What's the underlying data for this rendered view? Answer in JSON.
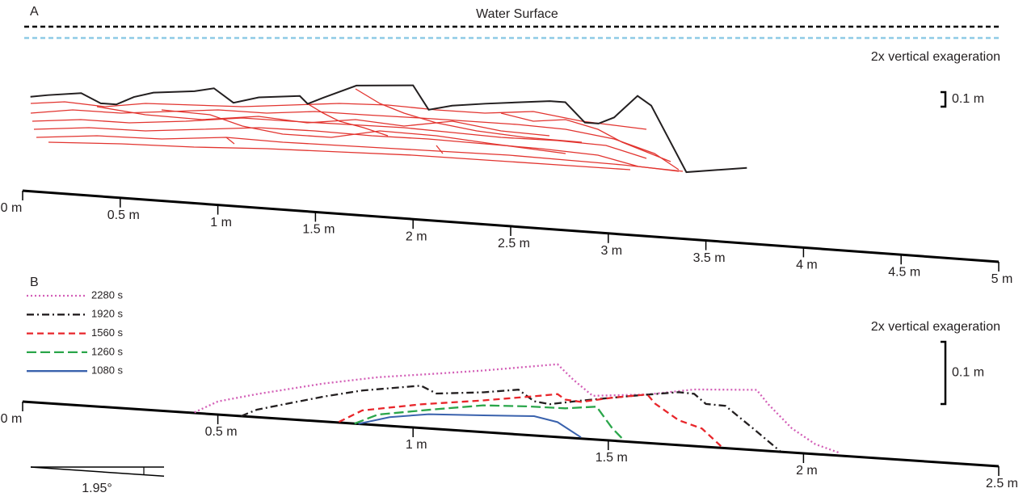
{
  "chart_data": [
    {
      "type": "line",
      "panel_label": "A",
      "annotation": "Water Surface",
      "note": "2x vertical exageration",
      "scale_bar": {
        "value": 0.1,
        "label": "0.1 m"
      },
      "xlim": [
        0,
        5
      ],
      "xticks": [
        {
          "value": 0,
          "label": "0 m"
        },
        {
          "value": 0.5,
          "label": "0.5 m"
        },
        {
          "value": 1,
          "label": "1 m"
        },
        {
          "value": 1.5,
          "label": "1.5 m"
        },
        {
          "value": 2,
          "label": "2 m"
        },
        {
          "value": 2.5,
          "label": "2.5 m"
        },
        {
          "value": 3,
          "label": "3 m"
        },
        {
          "value": 3.5,
          "label": "3.5 m"
        },
        {
          "value": 4,
          "label": "4 m"
        },
        {
          "value": 4.5,
          "label": "4.5 m"
        },
        {
          "value": 5,
          "label": "5 m"
        }
      ],
      "series": [
        {
          "color": "#231f20",
          "style": "solid",
          "x": [
            0.04,
            0.13,
            0.3,
            0.4,
            0.48,
            0.57,
            0.67,
            0.88,
            0.98,
            1.08,
            1.21,
            1.42,
            1.46,
            1.54,
            1.71,
            2.0,
            2.08,
            2.2,
            2.37,
            2.7,
            2.78,
            2.88,
            2.95,
            3.03,
            3.15,
            3.22,
            3.4,
            3.71
          ],
          "values": [
            0.65,
            0.67,
            0.7,
            0.64,
            0.64,
            0.7,
            0.74,
            0.77,
            0.8,
            0.71,
            0.76,
            0.79,
            0.74,
            0.79,
            0.89,
            0.92,
            0.76,
            0.8,
            0.83,
            0.88,
            0.88,
            0.75,
            0.75,
            0.8,
            0.96,
            0.9,
            0.46,
            0.52
          ]
        }
      ]
    },
    {
      "type": "line",
      "panel_label": "B",
      "note": "2x vertical exageration",
      "scale_bar": {
        "value": 0.1,
        "label": "0.1 m"
      },
      "slope": {
        "value": 1.95,
        "label": "1.95°"
      },
      "xlim": [
        0,
        2.5
      ],
      "xticks": [
        {
          "value": 0,
          "label": "0 m"
        },
        {
          "value": 0.5,
          "label": "0.5 m"
        },
        {
          "value": 1,
          "label": "1 m"
        },
        {
          "value": 1.5,
          "label": "1.5 m"
        },
        {
          "value": 2,
          "label": "2 m"
        },
        {
          "value": 2.5,
          "label": "2.5 m"
        }
      ],
      "series": [
        {
          "name": "2280 s",
          "color": "#d35fb7",
          "style": "dotted",
          "x": [
            0.44,
            0.5,
            0.6,
            0.77,
            0.91,
            1.06,
            1.18,
            1.37,
            1.41,
            1.46,
            1.6,
            1.72,
            1.88,
            1.91,
            1.97,
            2.03,
            2.09
          ],
          "values": [
            0.001,
            0.021,
            0.037,
            0.061,
            0.077,
            0.089,
            0.099,
            0.117,
            0.094,
            0.07,
            0.078,
            0.091,
            0.097,
            0.075,
            0.039,
            0.016,
            0.005
          ]
        },
        {
          "name": "1920 s",
          "color": "#231f20",
          "style": "dashdot",
          "x": [
            0.56,
            0.6,
            0.77,
            0.87,
            1.02,
            1.06,
            1.18,
            1.27,
            1.31,
            1.35,
            1.43,
            1.56,
            1.68,
            1.72,
            1.75,
            1.8,
            1.87,
            1.94
          ],
          "values": [
            0.0,
            0.012,
            0.04,
            0.054,
            0.068,
            0.057,
            0.064,
            0.072,
            0.055,
            0.052,
            0.061,
            0.074,
            0.085,
            0.084,
            0.069,
            0.068,
            0.035,
            0.001
          ]
        },
        {
          "name": "1560 s",
          "color": "#e8262b",
          "style": "dashed",
          "x": [
            0.81,
            0.87,
            1.02,
            1.18,
            1.31,
            1.37,
            1.39,
            1.43,
            1.51,
            1.6,
            1.62,
            1.68,
            1.74,
            1.79
          ],
          "values": [
            0.001,
            0.022,
            0.038,
            0.051,
            0.063,
            0.069,
            0.061,
            0.059,
            0.069,
            0.078,
            0.064,
            0.04,
            0.029,
            0.002
          ]
        },
        {
          "name": "1260 s",
          "color": "#2aa64a",
          "style": "longdash",
          "x": [
            0.85,
            0.91,
            1.04,
            1.18,
            1.29,
            1.39,
            1.47,
            1.51,
            1.54
          ],
          "values": [
            0.0,
            0.017,
            0.03,
            0.043,
            0.046,
            0.047,
            0.053,
            0.02,
            0.002
          ]
        },
        {
          "name": "1080 s",
          "color": "#3a62ad",
          "style": "solid",
          "x": [
            0.86,
            0.94,
            1.04,
            1.18,
            1.31,
            1.37,
            1.43
          ],
          "values": [
            0.0,
            0.014,
            0.023,
            0.027,
            0.031,
            0.024,
            0.002
          ]
        }
      ]
    }
  ]
}
